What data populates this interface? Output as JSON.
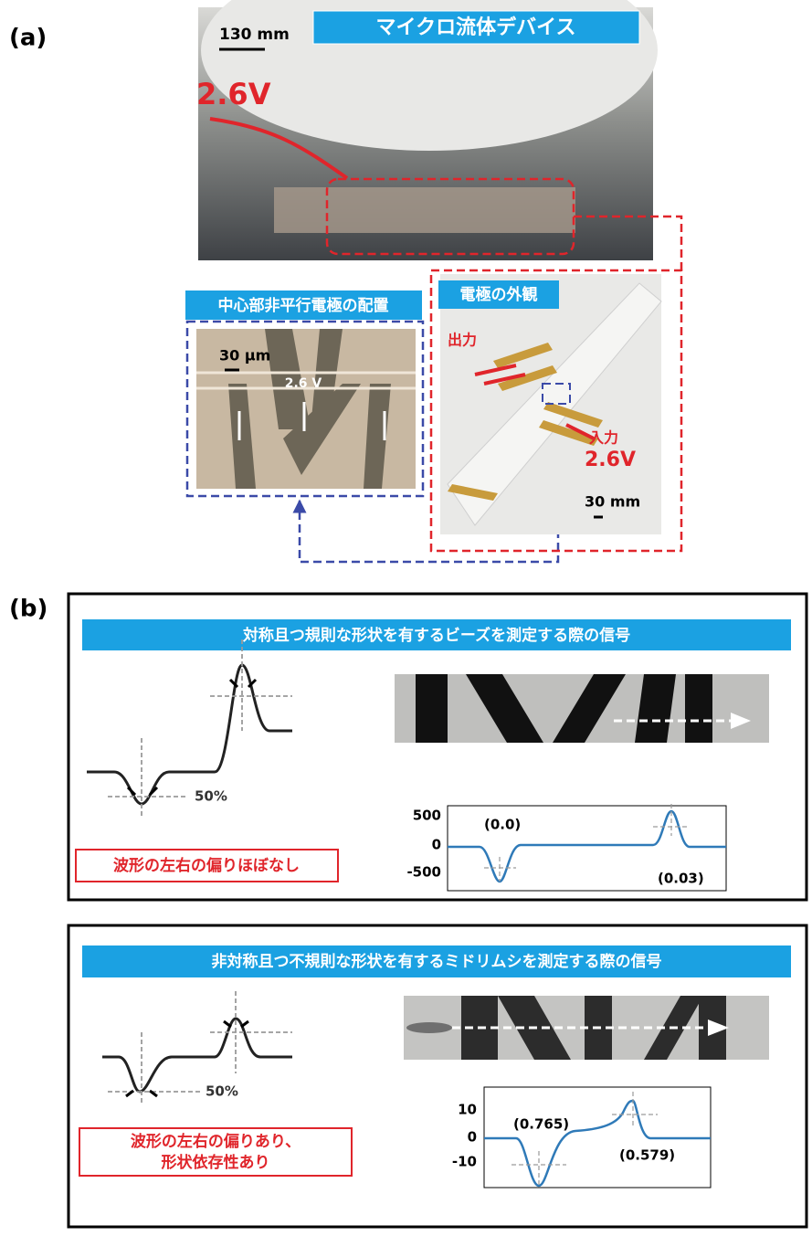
{
  "panel_a": {
    "label": "(a)",
    "device": {
      "title": "マイクロ流体デバイス",
      "scale": "130 mm",
      "voltage": "2.6V"
    },
    "electrode_layout": {
      "title": "中心部非平行電極の配置",
      "scale": "30 μm",
      "voltage": "2.6 V"
    },
    "electrode_view": {
      "title": "電極の外観",
      "output": "出力",
      "input": "入力",
      "voltage": "2.6V",
      "scale": "30 mm"
    }
  },
  "panel_b": {
    "label": "(b)",
    "cases": [
      {
        "title": "対称且つ規則な形状を有するビーズを測定する際の信号",
        "threshold": "50%",
        "note": [
          "波形の左右の偏りほぼなし"
        ],
        "yticks": [
          500,
          0,
          -500
        ],
        "annotations": [
          "(0.0)",
          "(0.03)"
        ]
      },
      {
        "title": "非対称且つ不規則な形状を有するミドリムシを測定する際の信号",
        "threshold": "50%",
        "note": [
          "波形の左右の偏りあり、",
          "形状依存性あり"
        ],
        "yticks": [
          10,
          0,
          -10
        ],
        "annotations": [
          "(0.765)",
          "(0.579)"
        ]
      }
    ]
  }
}
